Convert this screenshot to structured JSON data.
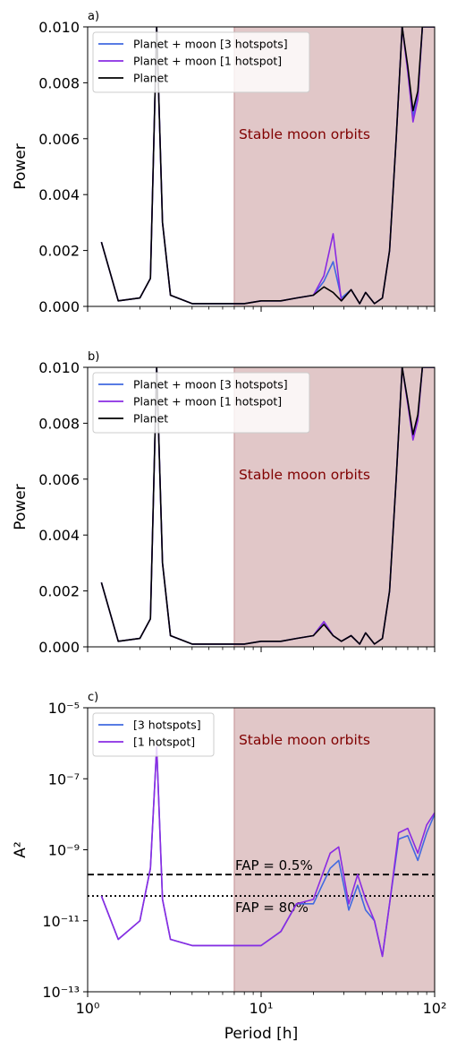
{
  "figure": {
    "xlabel": "Period [h]",
    "shaded_region_label": "Stable moon orbits",
    "shade_color": "#c38f92",
    "label_color": "#800000"
  },
  "chart_data": [
    {
      "panel_label": "a)",
      "type": "line",
      "xscale": "log",
      "xlim": [
        1,
        100
      ],
      "ylim": [
        0,
        0.01
      ],
      "ylabel": "Power",
      "yticks": [
        "0.000",
        "0.002",
        "0.004",
        "0.006",
        "0.008",
        "0.010"
      ],
      "ytick_values": [
        0,
        0.002,
        0.004,
        0.006,
        0.008,
        0.01
      ],
      "shaded_x": [
        7,
        100
      ],
      "legend_position": "top-left",
      "series": [
        {
          "name": "Planet + moon [3 hotspots]",
          "color": "#4169e1",
          "x": [
            1.2,
            1.5,
            2.0,
            2.3,
            2.5,
            2.7,
            3.0,
            4.0,
            6.0,
            8.0,
            10.0,
            13.0,
            16.0,
            20.0,
            23.0,
            26.0,
            29.0,
            33.0,
            37.0,
            40.0,
            45.0,
            50.0,
            55.0,
            60.0,
            65.0,
            70.0,
            75.0,
            80.0,
            85.0,
            90.0,
            100.0
          ],
          "y": [
            0.0023,
            0.0002,
            0.0003,
            0.001,
            0.01,
            0.003,
            0.0004,
            0.0001,
            0.0001,
            0.0001,
            0.0002,
            0.0002,
            0.0003,
            0.0004,
            0.0009,
            0.0016,
            0.0003,
            0.0006,
            0.0001,
            0.0005,
            0.0001,
            0.0003,
            0.002,
            0.006,
            0.01,
            0.0085,
            0.0068,
            0.0075,
            0.01,
            0.01,
            0.01
          ]
        },
        {
          "name": "Planet + moon [1 hotspot]",
          "color": "#8a2be2",
          "x": [
            1.2,
            1.5,
            2.0,
            2.3,
            2.5,
            2.7,
            3.0,
            4.0,
            6.0,
            8.0,
            10.0,
            13.0,
            16.0,
            20.0,
            23.0,
            26.0,
            29.0,
            33.0,
            37.0,
            40.0,
            45.0,
            50.0,
            55.0,
            60.0,
            65.0,
            70.0,
            75.0,
            80.0,
            85.0,
            90.0,
            100.0
          ],
          "y": [
            0.0023,
            0.0002,
            0.0003,
            0.001,
            0.01,
            0.003,
            0.0004,
            0.0001,
            0.0001,
            0.0001,
            0.0002,
            0.0002,
            0.0003,
            0.0004,
            0.0011,
            0.0026,
            0.0002,
            0.0006,
            0.0001,
            0.0005,
            0.0001,
            0.0003,
            0.002,
            0.006,
            0.01,
            0.0084,
            0.0066,
            0.0074,
            0.01,
            0.01,
            0.01
          ]
        },
        {
          "name": "Planet",
          "color": "#000000",
          "x": [
            1.2,
            1.5,
            2.0,
            2.3,
            2.5,
            2.7,
            3.0,
            4.0,
            6.0,
            8.0,
            10.0,
            13.0,
            16.0,
            20.0,
            23.0,
            26.0,
            29.0,
            33.0,
            37.0,
            40.0,
            45.0,
            50.0,
            55.0,
            60.0,
            65.0,
            70.0,
            75.0,
            80.0,
            85.0,
            90.0,
            100.0
          ],
          "y": [
            0.0023,
            0.0002,
            0.0003,
            0.001,
            0.01,
            0.003,
            0.0004,
            0.0001,
            0.0001,
            0.0001,
            0.0002,
            0.0002,
            0.0003,
            0.0004,
            0.0007,
            0.0005,
            0.0002,
            0.0006,
            0.0001,
            0.0005,
            0.0001,
            0.0003,
            0.002,
            0.006,
            0.01,
            0.0086,
            0.007,
            0.0077,
            0.01,
            0.01,
            0.01
          ]
        }
      ]
    },
    {
      "panel_label": "b)",
      "type": "line",
      "xscale": "log",
      "xlim": [
        1,
        100
      ],
      "ylim": [
        0,
        0.01
      ],
      "ylabel": "Power",
      "yticks": [
        "0.000",
        "0.002",
        "0.004",
        "0.006",
        "0.008",
        "0.010"
      ],
      "ytick_values": [
        0,
        0.002,
        0.004,
        0.006,
        0.008,
        0.01
      ],
      "shaded_x": [
        7,
        100
      ],
      "legend_position": "top-left",
      "series": [
        {
          "name": "Planet + moon [3 hotspots]",
          "color": "#4169e1",
          "x": [
            1.2,
            1.5,
            2.0,
            2.3,
            2.5,
            2.7,
            3.0,
            4.0,
            6.0,
            8.0,
            10.0,
            13.0,
            16.0,
            20.0,
            23.0,
            26.0,
            29.0,
            33.0,
            37.0,
            40.0,
            45.0,
            50.0,
            55.0,
            60.0,
            65.0,
            70.0,
            75.0,
            80.0,
            85.0,
            90.0,
            100.0
          ],
          "y": [
            0.0023,
            0.0002,
            0.0003,
            0.001,
            0.01,
            0.003,
            0.0004,
            0.0001,
            0.0001,
            0.0001,
            0.0002,
            0.0002,
            0.0003,
            0.0004,
            0.0009,
            0.0004,
            0.0002,
            0.0004,
            0.0001,
            0.0005,
            0.0001,
            0.0003,
            0.002,
            0.006,
            0.01,
            0.0088,
            0.0075,
            0.0082,
            0.01,
            0.01,
            0.01
          ]
        },
        {
          "name": "Planet + moon [1 hotspot]",
          "color": "#8a2be2",
          "x": [
            1.2,
            1.5,
            2.0,
            2.3,
            2.5,
            2.7,
            3.0,
            4.0,
            6.0,
            8.0,
            10.0,
            13.0,
            16.0,
            20.0,
            23.0,
            26.0,
            29.0,
            33.0,
            37.0,
            40.0,
            45.0,
            50.0,
            55.0,
            60.0,
            65.0,
            70.0,
            75.0,
            80.0,
            85.0,
            90.0,
            100.0
          ],
          "y": [
            0.0023,
            0.0002,
            0.0003,
            0.001,
            0.01,
            0.003,
            0.0004,
            0.0001,
            0.0001,
            0.0001,
            0.0002,
            0.0002,
            0.0003,
            0.0004,
            0.0009,
            0.0004,
            0.0002,
            0.0004,
            0.0001,
            0.0005,
            0.0001,
            0.0003,
            0.002,
            0.006,
            0.01,
            0.0087,
            0.0074,
            0.0081,
            0.01,
            0.01,
            0.01
          ]
        },
        {
          "name": "Planet",
          "color": "#000000",
          "x": [
            1.2,
            1.5,
            2.0,
            2.3,
            2.5,
            2.7,
            3.0,
            4.0,
            6.0,
            8.0,
            10.0,
            13.0,
            16.0,
            20.0,
            23.0,
            26.0,
            29.0,
            33.0,
            37.0,
            40.0,
            45.0,
            50.0,
            55.0,
            60.0,
            65.0,
            70.0,
            75.0,
            80.0,
            85.0,
            90.0,
            100.0
          ],
          "y": [
            0.0023,
            0.0002,
            0.0003,
            0.001,
            0.01,
            0.003,
            0.0004,
            0.0001,
            0.0001,
            0.0001,
            0.0002,
            0.0002,
            0.0003,
            0.0004,
            0.0008,
            0.0004,
            0.0002,
            0.0004,
            0.0001,
            0.0005,
            0.0001,
            0.0003,
            0.002,
            0.006,
            0.01,
            0.0088,
            0.0076,
            0.0083,
            0.01,
            0.01,
            0.01
          ]
        }
      ]
    },
    {
      "panel_label": "c)",
      "type": "line",
      "xscale": "log",
      "yscale": "log",
      "xlim": [
        1,
        100
      ],
      "ylim": [
        1e-13,
        1e-05
      ],
      "ylabel": "A²",
      "yticks": [
        "10⁻¹³",
        "10⁻¹¹",
        "10⁻⁹",
        "10⁻⁷",
        "10⁻⁵"
      ],
      "ytick_values": [
        1e-13,
        1e-11,
        1e-09,
        1e-07,
        1e-05
      ],
      "xticks": [
        "10⁰",
        "10¹",
        "10²"
      ],
      "xtick_values": [
        1,
        10,
        100
      ],
      "shaded_x": [
        7,
        100
      ],
      "legend_position": "top-left",
      "hlines": [
        {
          "y": 2e-10,
          "style": "dashed",
          "label": "FAP = 0.5%"
        },
        {
          "y": 5e-11,
          "style": "dotted",
          "label": "FAP = 80%"
        }
      ],
      "series": [
        {
          "name": "[3 hotspots]",
          "color": "#4169e1",
          "x": [
            1.2,
            1.5,
            2.0,
            2.3,
            2.5,
            2.7,
            3.0,
            4.0,
            6.0,
            8.0,
            10.0,
            13.0,
            16.0,
            20.0,
            25.0,
            28.0,
            32.0,
            36.0,
            40.0,
            45.0,
            50.0,
            55.0,
            62.0,
            70.0,
            80.0,
            90.0,
            100.0
          ],
          "y": [
            5e-11,
            3e-12,
            1e-11,
            3e-10,
            8e-07,
            4e-11,
            3e-12,
            2e-12,
            2e-12,
            2e-12,
            2e-12,
            5e-12,
            3e-11,
            3e-11,
            3e-10,
            5e-10,
            2e-11,
            1e-10,
            2e-11,
            1e-11,
            1e-12,
            3e-11,
            2e-09,
            2.5e-09,
            5e-10,
            3e-09,
            1e-08
          ]
        },
        {
          "name": "[1 hotspot]",
          "color": "#8a2be2",
          "x": [
            1.2,
            1.5,
            2.0,
            2.3,
            2.5,
            2.7,
            3.0,
            4.0,
            6.0,
            8.0,
            10.0,
            13.0,
            16.0,
            20.0,
            25.0,
            28.0,
            32.0,
            36.0,
            40.0,
            45.0,
            50.0,
            55.0,
            62.0,
            70.0,
            80.0,
            90.0,
            100.0
          ],
          "y": [
            5e-11,
            3e-12,
            1e-11,
            3e-10,
            8e-07,
            4e-11,
            3e-12,
            2e-12,
            2e-12,
            2e-12,
            2e-12,
            5e-12,
            3e-11,
            4e-11,
            8e-10,
            1.2e-09,
            3e-11,
            2e-10,
            4e-11,
            1e-11,
            1e-12,
            3e-11,
            3e-09,
            4e-09,
            8e-10,
            5e-09,
            1.1e-08
          ]
        }
      ]
    }
  ]
}
